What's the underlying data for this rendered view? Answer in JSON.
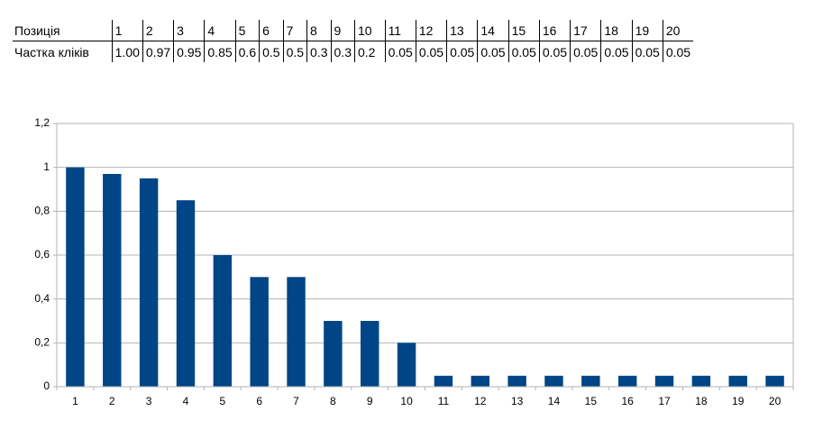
{
  "table": {
    "rows": [
      [
        "Позиція",
        "1",
        "2",
        "3",
        "4",
        "5",
        "6",
        "7",
        "8",
        "9",
        "10",
        "11",
        "12",
        "13",
        "14",
        "15",
        "16",
        "17",
        "18",
        "19",
        "20"
      ],
      [
        "Частка кліків",
        "1.00",
        "0.97",
        "0.95",
        "0.85",
        "0.6",
        "0.5",
        "0.5",
        "0.3",
        "0.3",
        "0.2",
        "0.05",
        "0.05",
        "0.05",
        "0.05",
        "0.05",
        "0.05",
        "0.05",
        "0.05",
        "0.05",
        "0.05"
      ]
    ]
  },
  "chart_data": {
    "type": "bar",
    "categories": [
      "1",
      "2",
      "3",
      "4",
      "5",
      "6",
      "7",
      "8",
      "9",
      "10",
      "11",
      "12",
      "13",
      "14",
      "15",
      "16",
      "17",
      "18",
      "19",
      "20"
    ],
    "values": [
      1,
      0.97,
      0.95,
      0.85,
      0.6,
      0.5,
      0.5,
      0.3,
      0.3,
      0.2,
      0.05,
      0.05,
      0.05,
      0.05,
      0.05,
      0.05,
      0.05,
      0.05,
      0.05,
      0.05
    ],
    "color": "#004586",
    "ylim": [
      0,
      1.2
    ],
    "yticks": [
      0,
      {
        "value": 0.2,
        "label": "0,2"
      },
      {
        "value": 0.4,
        "label": "0,4"
      },
      {
        "value": 0.6,
        "label": "0,6"
      },
      {
        "value": 0.8,
        "label": "0,8"
      },
      1,
      {
        "value": 1.2,
        "label": "1,2"
      }
    ],
    "grid": true
  }
}
